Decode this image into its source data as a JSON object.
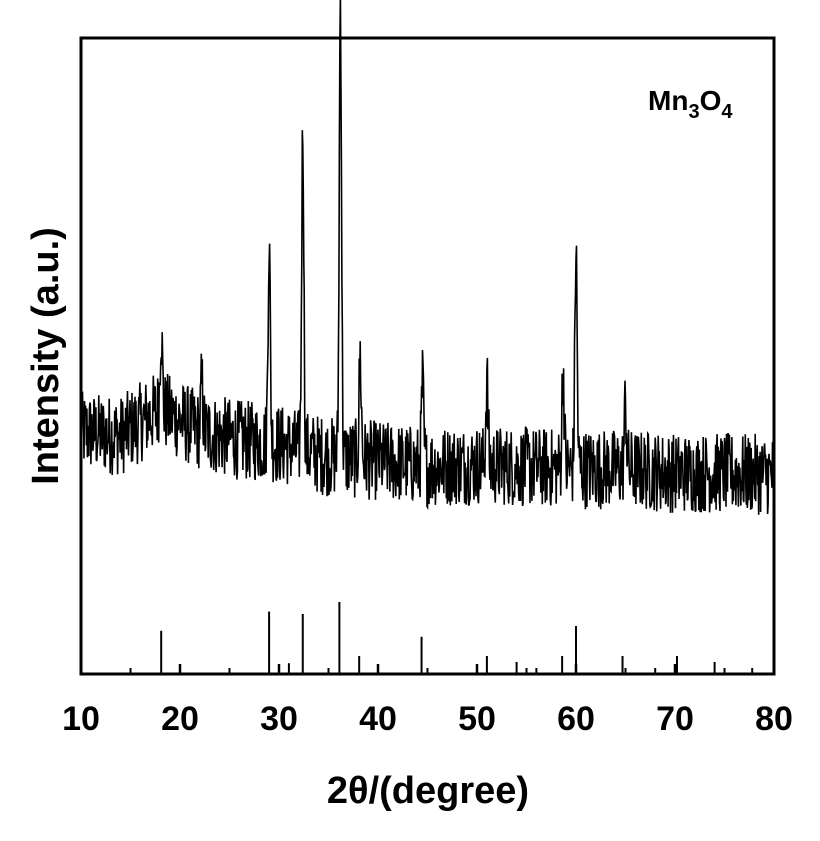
{
  "chart_data": {
    "type": "line",
    "title": "",
    "xlabel": "2θ/(degree)",
    "ylabel": "Intensity (a.u.)",
    "xlim": [
      10,
      80
    ],
    "x_ticks": [
      "10",
      "20",
      "30",
      "40",
      "50",
      "60",
      "70",
      "80"
    ],
    "y_ticks_labeled": false,
    "grid": false,
    "legend_label": {
      "base": "Mn",
      "sub1": "3",
      "mid": "O",
      "sub2": "4",
      "placement": "top-right"
    },
    "colors": {
      "line": "#000000",
      "axes": "#000000"
    },
    "xrd_pattern": {
      "baseline": [
        [
          10,
          0.62
        ],
        [
          14,
          0.6
        ],
        [
          18,
          0.73
        ],
        [
          22,
          0.62
        ],
        [
          26,
          0.58
        ],
        [
          30,
          0.56
        ],
        [
          35,
          0.5
        ],
        [
          40,
          0.48
        ],
        [
          45,
          0.45
        ],
        [
          50,
          0.46
        ],
        [
          55,
          0.45
        ],
        [
          60,
          0.44
        ],
        [
          65,
          0.44
        ],
        [
          70,
          0.42
        ],
        [
          75,
          0.42
        ],
        [
          80,
          0.41
        ]
      ],
      "noise_amplitude": 0.16,
      "peaks": [
        {
          "x": 18.1,
          "height": 0.18
        },
        {
          "x": 22.2,
          "height": 0.1
        },
        {
          "x": 29.0,
          "height": 0.44
        },
        {
          "x": 32.4,
          "height": 0.7
        },
        {
          "x": 36.2,
          "height": 1.0
        },
        {
          "x": 38.2,
          "height": 0.22
        },
        {
          "x": 44.5,
          "height": 0.18
        },
        {
          "x": 51.0,
          "height": 0.18
        },
        {
          "x": 58.7,
          "height": 0.22
        },
        {
          "x": 60.0,
          "height": 0.48
        },
        {
          "x": 65.0,
          "height": 0.14
        }
      ]
    },
    "reference_lines": [
      {
        "x": 18.1,
        "intensity": 0.36
      },
      {
        "x": 29.0,
        "intensity": 0.52
      },
      {
        "x": 31.0,
        "intensity": 0.09
      },
      {
        "x": 32.4,
        "intensity": 0.5
      },
      {
        "x": 36.1,
        "intensity": 0.6
      },
      {
        "x": 38.1,
        "intensity": 0.15
      },
      {
        "x": 44.4,
        "intensity": 0.31
      },
      {
        "x": 50.0,
        "intensity": 0.05
      },
      {
        "x": 51.0,
        "intensity": 0.15
      },
      {
        "x": 54.0,
        "intensity": 0.1
      },
      {
        "x": 56.0,
        "intensity": 0.05
      },
      {
        "x": 58.6,
        "intensity": 0.15
      },
      {
        "x": 60.0,
        "intensity": 0.4
      },
      {
        "x": 64.7,
        "intensity": 0.15
      },
      {
        "x": 68.0,
        "intensity": 0.05
      },
      {
        "x": 70.2,
        "intensity": 0.15
      },
      {
        "x": 74.0,
        "intensity": 0.1
      },
      {
        "x": 77.8,
        "intensity": 0.05
      }
    ]
  }
}
